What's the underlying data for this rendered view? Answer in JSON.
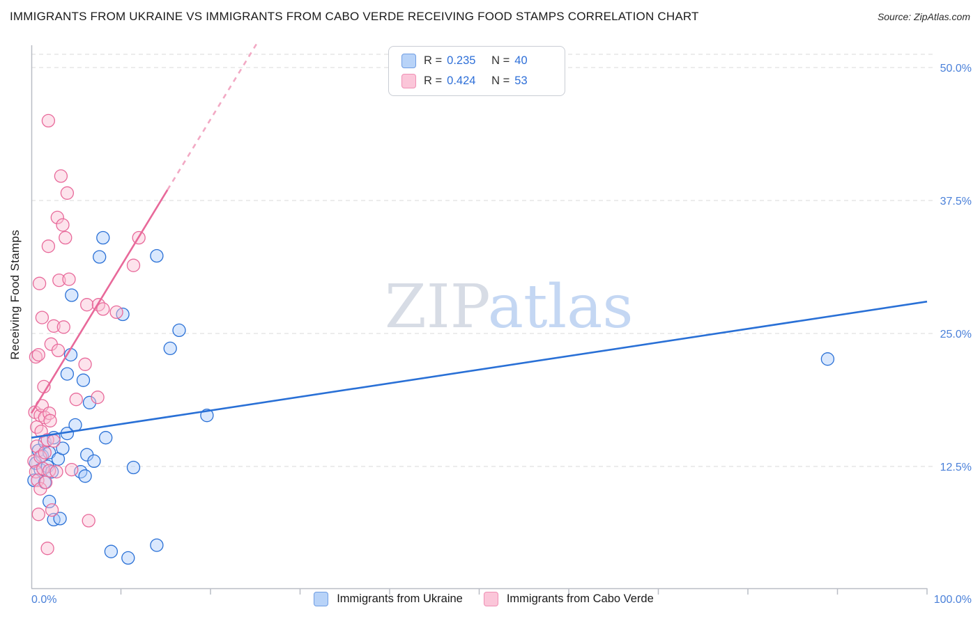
{
  "header": {
    "title": "IMMIGRANTS FROM UKRAINE VS IMMIGRANTS FROM CABO VERDE RECEIVING FOOD STAMPS CORRELATION CHART",
    "source": "Source: ZipAtlas.com"
  },
  "watermark": {
    "part1": "ZIP",
    "part2": "atlas"
  },
  "axes": {
    "y_title": "Receiving Food Stamps",
    "x_min_label": "0.0%",
    "x_max_label": "100.0%"
  },
  "legend_box": {
    "rows": [
      {
        "series": "Immigrants from Ukraine",
        "r_label": "R =",
        "r_value": "0.235",
        "n_label": "N =",
        "n_value": "40",
        "swatch_fill": "#b8d3f8",
        "swatch_stroke": "#6f9de3"
      },
      {
        "series": "Immigrants from Cabo Verde",
        "r_label": "R =",
        "r_value": "0.424",
        "n_label": "N =",
        "n_value": "53",
        "swatch_fill": "#fbc6d9",
        "swatch_stroke": "#ef8fb4"
      }
    ]
  },
  "bottom_legend": [
    {
      "label": "Immigrants from Ukraine",
      "swatch_fill": "#b8d3f8",
      "swatch_stroke": "#6f9de3"
    },
    {
      "label": "Immigrants from Cabo Verde",
      "swatch_fill": "#fbc6d9",
      "swatch_stroke": "#ef8fb4"
    }
  ],
  "chart_data": {
    "type": "scatter",
    "title": "IMMIGRANTS FROM UKRAINE VS IMMIGRANTS FROM CABO VERDE RECEIVING FOOD STAMPS CORRELATION CHART",
    "xlabel": "",
    "ylabel": "Receiving Food Stamps",
    "x_range": [
      0,
      100
    ],
    "y_range": [
      0,
      52
    ],
    "grid": "horizontal-dashed",
    "legend_position": "top-center",
    "y_ticks": [
      {
        "value": 50,
        "label": "50.0%"
      },
      {
        "value": 37.5,
        "label": "37.5%"
      },
      {
        "value": 25,
        "label": "25.0%"
      },
      {
        "value": 12.5,
        "label": "12.5%"
      }
    ],
    "x_tick_values": [
      10,
      20,
      30,
      40,
      50,
      60,
      70,
      80,
      90,
      100
    ],
    "series": [
      {
        "name": "Immigrants from Ukraine",
        "R": 0.235,
        "N": 40,
        "color": "#2970d6",
        "fill": "#adcdfa",
        "points": [
          [
            0.3,
            11.2
          ],
          [
            0.5,
            12.8
          ],
          [
            0.8,
            14.0
          ],
          [
            1.0,
            12.2
          ],
          [
            1.2,
            13.5
          ],
          [
            1.5,
            14.8
          ],
          [
            1.5,
            11.0
          ],
          [
            1.8,
            12.5
          ],
          [
            2.0,
            13.8
          ],
          [
            2.0,
            9.2
          ],
          [
            2.3,
            12.0
          ],
          [
            2.5,
            15.2
          ],
          [
            2.5,
            7.5
          ],
          [
            3.0,
            13.2
          ],
          [
            3.2,
            7.6
          ],
          [
            3.5,
            14.2
          ],
          [
            4.0,
            15.6
          ],
          [
            4.0,
            21.2
          ],
          [
            4.4,
            23.0
          ],
          [
            4.5,
            28.6
          ],
          [
            4.9,
            16.4
          ],
          [
            5.5,
            12.0
          ],
          [
            5.8,
            20.6
          ],
          [
            6.0,
            11.6
          ],
          [
            6.2,
            13.6
          ],
          [
            6.5,
            18.5
          ],
          [
            7.0,
            13.0
          ],
          [
            7.6,
            32.2
          ],
          [
            8.0,
            34.0
          ],
          [
            8.3,
            15.2
          ],
          [
            8.9,
            4.5
          ],
          [
            10.2,
            26.8
          ],
          [
            10.8,
            3.9
          ],
          [
            11.4,
            12.4
          ],
          [
            14.0,
            32.3
          ],
          [
            14.0,
            5.1
          ],
          [
            15.5,
            23.6
          ],
          [
            16.5,
            25.3
          ],
          [
            19.6,
            17.3
          ],
          [
            88.9,
            22.6
          ]
        ]
      },
      {
        "name": "Immigrants from Cabo Verde",
        "R": 0.424,
        "N": 53,
        "color": "#e8699a",
        "fill": "#fbc0d5",
        "points": [
          [
            0.3,
            13.0
          ],
          [
            0.4,
            17.6
          ],
          [
            0.5,
            12.0
          ],
          [
            0.5,
            22.8
          ],
          [
            0.6,
            14.4
          ],
          [
            0.6,
            16.2
          ],
          [
            0.7,
            11.2
          ],
          [
            0.8,
            8.0
          ],
          [
            0.8,
            23.0
          ],
          [
            0.9,
            29.7
          ],
          [
            1.0,
            17.3
          ],
          [
            1.0,
            13.4
          ],
          [
            1.0,
            10.4
          ],
          [
            1.1,
            15.8
          ],
          [
            1.2,
            26.5
          ],
          [
            1.2,
            18.2
          ],
          [
            1.3,
            12.3
          ],
          [
            1.4,
            20.0
          ],
          [
            1.5,
            17.1
          ],
          [
            1.5,
            13.8
          ],
          [
            1.6,
            11.0
          ],
          [
            1.8,
            4.8
          ],
          [
            1.8,
            15.0
          ],
          [
            1.9,
            33.2
          ],
          [
            1.9,
            45.0
          ],
          [
            2.0,
            17.5
          ],
          [
            2.0,
            12.1
          ],
          [
            2.1,
            16.8
          ],
          [
            2.2,
            24.0
          ],
          [
            2.3,
            8.4
          ],
          [
            2.5,
            25.7
          ],
          [
            2.5,
            14.9
          ],
          [
            2.8,
            12.0
          ],
          [
            2.9,
            35.9
          ],
          [
            3.0,
            23.4
          ],
          [
            3.1,
            30.0
          ],
          [
            3.3,
            39.8
          ],
          [
            3.5,
            35.2
          ],
          [
            3.6,
            25.6
          ],
          [
            3.8,
            34.0
          ],
          [
            4.0,
            38.2
          ],
          [
            4.2,
            30.1
          ],
          [
            4.5,
            12.2
          ],
          [
            5.0,
            18.8
          ],
          [
            6.0,
            22.1
          ],
          [
            6.2,
            27.7
          ],
          [
            6.4,
            7.4
          ],
          [
            7.4,
            19.0
          ],
          [
            7.5,
            27.7
          ],
          [
            8.0,
            27.3
          ],
          [
            9.5,
            27.0
          ],
          [
            11.4,
            31.4
          ],
          [
            12.0,
            34.0
          ]
        ]
      }
    ],
    "trend_lines": [
      {
        "series": "Immigrants from Ukraine",
        "from": [
          0,
          15.2
        ],
        "to": [
          100,
          28.0
        ],
        "style": "solid",
        "color": "#2970d6"
      },
      {
        "series": "Immigrants from Cabo Verde",
        "from": [
          0,
          17.5
        ],
        "to": [
          15.2,
          38.5
        ],
        "style": "solid",
        "color": "#e8699a"
      },
      {
        "series": "Immigrants from Cabo Verde",
        "from": [
          15.2,
          38.5
        ],
        "to": [
          25.2,
          52.3
        ],
        "style": "dashed",
        "color": "#f2a9c4"
      }
    ]
  }
}
